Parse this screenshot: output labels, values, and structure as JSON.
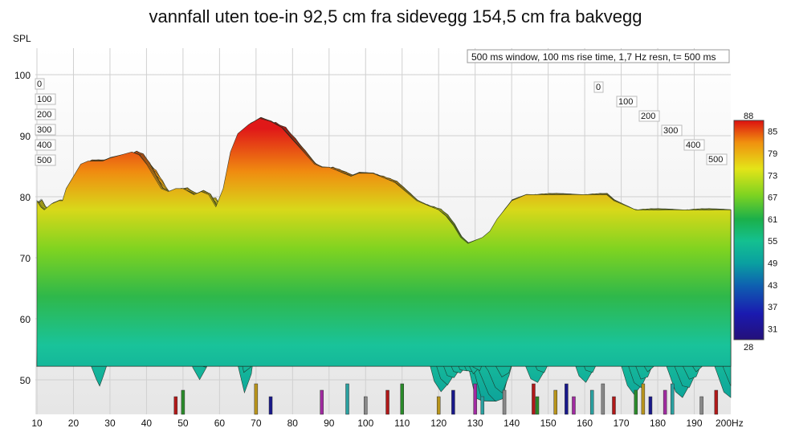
{
  "chart_data": {
    "type": "area",
    "title": "vannfall uten toe-in 92,5 cm fra sidevegg 154,5 cm fra bakvegg",
    "info_box": "500 ms window, 100 ms rise time,  1,7 Hz resn, t= 500 ms",
    "ylabel": "SPL",
    "xlabel": "",
    "x_unit_label": "200Hz",
    "x_ticks": [
      "10",
      "20",
      "30",
      "40",
      "50",
      "60",
      "70",
      "80",
      "90",
      "100",
      "110",
      "120",
      "130",
      "140",
      "150",
      "160",
      "170",
      "180",
      "190"
    ],
    "y_ticks": [
      "50",
      "60",
      "70",
      "80",
      "90",
      "100"
    ],
    "xlim": [
      10,
      200
    ],
    "ylim": [
      45,
      103
    ],
    "time_ticks_left": [
      "0",
      "100",
      "200",
      "300",
      "400",
      "500"
    ],
    "time_ticks_right": [
      "0",
      "100",
      "200",
      "300",
      "400",
      "500"
    ],
    "time_range_ms": [
      0,
      500
    ],
    "colorbar": {
      "max_label": "88",
      "min_label": "28",
      "labels": [
        "85",
        "79",
        "73",
        "67",
        "61",
        "55",
        "49",
        "43",
        "37",
        "31"
      ],
      "range": [
        28,
        88
      ]
    },
    "front_slice": {
      "x": [
        10,
        11,
        12,
        14,
        16,
        17,
        18,
        20,
        22,
        24,
        26,
        28,
        30,
        33,
        36,
        38,
        40,
        42,
        44,
        46,
        48,
        50,
        53,
        55,
        57,
        59,
        61,
        63,
        65,
        68,
        71,
        74,
        77,
        80,
        83,
        86,
        88,
        90,
        92,
        94,
        96,
        98,
        100,
        102,
        104,
        106,
        108,
        110,
        112,
        114,
        116,
        118,
        120,
        122,
        124,
        126,
        128,
        130,
        132,
        134,
        136,
        138,
        140,
        142,
        144,
        146,
        148,
        150,
        152,
        154,
        156,
        158,
        160,
        162,
        164,
        166,
        168,
        170,
        172,
        174,
        176,
        178,
        180,
        182,
        184,
        186,
        188,
        190,
        192,
        194,
        196,
        198,
        200
      ],
      "y": [
        80,
        79,
        78.5,
        79.5,
        80,
        80,
        82,
        84,
        86,
        86.5,
        86.5,
        86.5,
        87,
        87.5,
        88,
        87.5,
        86,
        84,
        82,
        81.5,
        82,
        82,
        81,
        81.5,
        81,
        79,
        82,
        88,
        91,
        92.5,
        93.5,
        93,
        92,
        90,
        88,
        86,
        85.5,
        85.5,
        85,
        84.5,
        84,
        84.5,
        84.5,
        84.5,
        84,
        83.5,
        83,
        82,
        81,
        80,
        79.5,
        79,
        78.5,
        77.5,
        76,
        74,
        73,
        73.5,
        74,
        75,
        77,
        78.5,
        80,
        80.5,
        81,
        81,
        81,
        81,
        81,
        81,
        81,
        81,
        81,
        81,
        81,
        81,
        80,
        79.5,
        79,
        78.5,
        78.5,
        78.5,
        78.5,
        78.5,
        78.5,
        78.5,
        78.5,
        78.5,
        78.5,
        78.5,
        78.5,
        78.5,
        78.5
      ]
    },
    "resonance_markers": [
      48,
      50,
      70,
      74,
      88,
      95,
      100,
      106,
      110,
      120,
      124,
      130,
      132,
      138,
      146,
      147,
      152,
      155,
      157,
      162,
      165,
      168,
      174,
      176,
      178,
      182,
      184,
      192,
      196
    ]
  }
}
